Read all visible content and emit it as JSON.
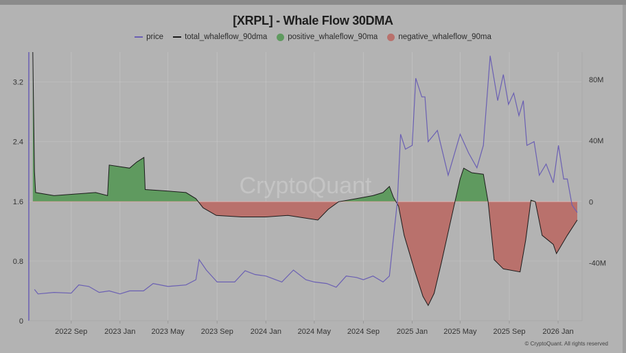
{
  "chart_data": {
    "type": "line",
    "title": "[XRPL] - Whale Flow 30DMA",
    "watermark": "CryptoQuant",
    "copyright": "© CryptoQuant. All rights reserved",
    "legend": [
      {
        "name": "price",
        "kind": "line",
        "color": "#6a5fb3"
      },
      {
        "name": "total_whaleflow_90dma",
        "kind": "line",
        "color": "#1a1a1a"
      },
      {
        "name": "positive_whaleflow_90ma",
        "kind": "dot",
        "color": "#5f9a5f"
      },
      {
        "name": "negative_whaleflow_90ma",
        "kind": "dot",
        "color": "#b9716c"
      }
    ],
    "legend_position": "top",
    "x_ticks": [
      "2022 Sep",
      "2023 Jan",
      "2023 May",
      "2023 Sep",
      "2024 Jan",
      "2024 May",
      "2024 Sep",
      "2025 Jan",
      "2025 May",
      "2025 Sep",
      "2026 Jan"
    ],
    "x_tick_dates": [
      "2022-09-01",
      "2023-01-01",
      "2023-05-01",
      "2023-09-01",
      "2024-01-01",
      "2024-05-01",
      "2024-09-01",
      "2025-01-01",
      "2025-05-01",
      "2025-09-01",
      "2026-01-01"
    ],
    "x_range": [
      "2022-05-18",
      "2026-03-02"
    ],
    "y_left": {
      "ticks": [
        "0",
        "0.8",
        "1.6",
        "2.4",
        "3.2"
      ],
      "tick_values": [
        0,
        0.8,
        1.6,
        2.4,
        3.2
      ],
      "range": [
        0,
        3.6
      ]
    },
    "y_right": {
      "ticks": [
        "-40M",
        "0",
        "40M",
        "80M"
      ],
      "tick_values": [
        -40,
        0,
        40,
        80
      ],
      "unit": "M",
      "range": [
        -78,
        98
      ]
    },
    "grid": true,
    "series": [
      {
        "name": "price",
        "axis": "left",
        "color": "#6a5fb3",
        "points": [
          [
            "2022-06-01",
            0.42
          ],
          [
            "2022-06-10",
            0.36
          ],
          [
            "2022-07-20",
            0.38
          ],
          [
            "2022-09-01",
            0.37
          ],
          [
            "2022-09-20",
            0.48
          ],
          [
            "2022-10-15",
            0.46
          ],
          [
            "2022-11-10",
            0.38
          ],
          [
            "2022-12-05",
            0.4
          ],
          [
            "2023-01-01",
            0.36
          ],
          [
            "2023-01-25",
            0.4
          ],
          [
            "2023-03-01",
            0.4
          ],
          [
            "2023-03-25",
            0.5
          ],
          [
            "2023-05-01",
            0.46
          ],
          [
            "2023-06-15",
            0.48
          ],
          [
            "2023-07-10",
            0.55
          ],
          [
            "2023-07-18",
            0.82
          ],
          [
            "2023-08-05",
            0.68
          ],
          [
            "2023-09-01",
            0.52
          ],
          [
            "2023-10-15",
            0.52
          ],
          [
            "2023-11-10",
            0.67
          ],
          [
            "2023-12-05",
            0.62
          ],
          [
            "2024-01-01",
            0.6
          ],
          [
            "2024-02-10",
            0.52
          ],
          [
            "2024-03-10",
            0.68
          ],
          [
            "2024-04-10",
            0.55
          ],
          [
            "2024-05-01",
            0.52
          ],
          [
            "2024-06-01",
            0.5
          ],
          [
            "2024-06-25",
            0.45
          ],
          [
            "2024-07-20",
            0.6
          ],
          [
            "2024-08-15",
            0.58
          ],
          [
            "2024-09-01",
            0.55
          ],
          [
            "2024-09-25",
            0.6
          ],
          [
            "2024-10-20",
            0.52
          ],
          [
            "2024-11-05",
            0.6
          ],
          [
            "2024-11-15",
            1.1
          ],
          [
            "2024-11-25",
            1.6
          ],
          [
            "2024-12-03",
            2.5
          ],
          [
            "2024-12-15",
            2.3
          ],
          [
            "2025-01-01",
            2.35
          ],
          [
            "2025-01-10",
            3.25
          ],
          [
            "2025-01-25",
            3.0
          ],
          [
            "2025-02-02",
            3.0
          ],
          [
            "2025-02-10",
            2.4
          ],
          [
            "2025-03-05",
            2.55
          ],
          [
            "2025-04-01",
            1.95
          ],
          [
            "2025-05-01",
            2.5
          ],
          [
            "2025-05-22",
            2.25
          ],
          [
            "2025-06-12",
            2.05
          ],
          [
            "2025-06-28",
            2.35
          ],
          [
            "2025-07-15",
            3.55
          ],
          [
            "2025-08-03",
            2.95
          ],
          [
            "2025-08-17",
            3.3
          ],
          [
            "2025-08-30",
            2.9
          ],
          [
            "2025-09-12",
            3.05
          ],
          [
            "2025-09-25",
            2.75
          ],
          [
            "2025-10-06",
            2.95
          ],
          [
            "2025-10-15",
            2.35
          ],
          [
            "2025-11-02",
            2.4
          ],
          [
            "2025-11-15",
            1.95
          ],
          [
            "2025-12-02",
            2.1
          ],
          [
            "2025-12-20",
            1.85
          ],
          [
            "2026-01-02",
            2.35
          ],
          [
            "2026-01-15",
            1.9
          ],
          [
            "2026-01-24",
            1.9
          ],
          [
            "2026-02-05",
            1.55
          ],
          [
            "2026-02-18",
            1.45
          ]
        ]
      },
      {
        "name": "total_whaleflow_90dma",
        "axis": "right",
        "unit": "M",
        "color": "#1a1a1a",
        "points": [
          [
            "2022-05-28",
            98
          ],
          [
            "2022-06-01",
            20
          ],
          [
            "2022-06-04",
            6
          ],
          [
            "2022-07-20",
            4
          ],
          [
            "2022-09-10",
            5
          ],
          [
            "2022-11-01",
            6
          ],
          [
            "2022-12-01",
            4
          ],
          [
            "2022-12-05",
            24
          ],
          [
            "2023-01-25",
            22
          ],
          [
            "2023-02-12",
            26
          ],
          [
            "2023-03-02",
            29
          ],
          [
            "2023-03-05",
            8
          ],
          [
            "2023-05-01",
            7
          ],
          [
            "2023-06-15",
            6
          ],
          [
            "2023-07-10",
            2
          ],
          [
            "2023-07-28",
            -4
          ],
          [
            "2023-08-30",
            -9
          ],
          [
            "2023-11-01",
            -10
          ],
          [
            "2024-01-01",
            -10
          ],
          [
            "2024-02-25",
            -9
          ],
          [
            "2024-05-10",
            -12
          ],
          [
            "2024-06-05",
            -5
          ],
          [
            "2024-07-01",
            0
          ],
          [
            "2024-08-15",
            2
          ],
          [
            "2024-09-25",
            4
          ],
          [
            "2024-10-20",
            6
          ],
          [
            "2024-11-05",
            10
          ],
          [
            "2024-11-15",
            3
          ],
          [
            "2024-11-28",
            -3
          ],
          [
            "2024-12-12",
            -22
          ],
          [
            "2025-01-07",
            -45
          ],
          [
            "2025-01-28",
            -62
          ],
          [
            "2025-02-10",
            -68
          ],
          [
            "2025-02-25",
            -60
          ],
          [
            "2025-03-15",
            -40
          ],
          [
            "2025-04-01",
            -20
          ],
          [
            "2025-04-18",
            0
          ],
          [
            "2025-05-01",
            15
          ],
          [
            "2025-05-10",
            22
          ],
          [
            "2025-05-30",
            19
          ],
          [
            "2025-06-28",
            18
          ],
          [
            "2025-07-10",
            0
          ],
          [
            "2025-07-25",
            -38
          ],
          [
            "2025-08-17",
            -44
          ],
          [
            "2025-09-28",
            -46
          ],
          [
            "2025-10-12",
            -25
          ],
          [
            "2025-10-25",
            1
          ],
          [
            "2025-11-05",
            0
          ],
          [
            "2025-11-22",
            -22
          ],
          [
            "2025-12-20",
            -28
          ],
          [
            "2025-12-28",
            -34
          ],
          [
            "2026-01-24",
            -22
          ],
          [
            "2026-02-18",
            -12
          ]
        ]
      }
    ]
  }
}
